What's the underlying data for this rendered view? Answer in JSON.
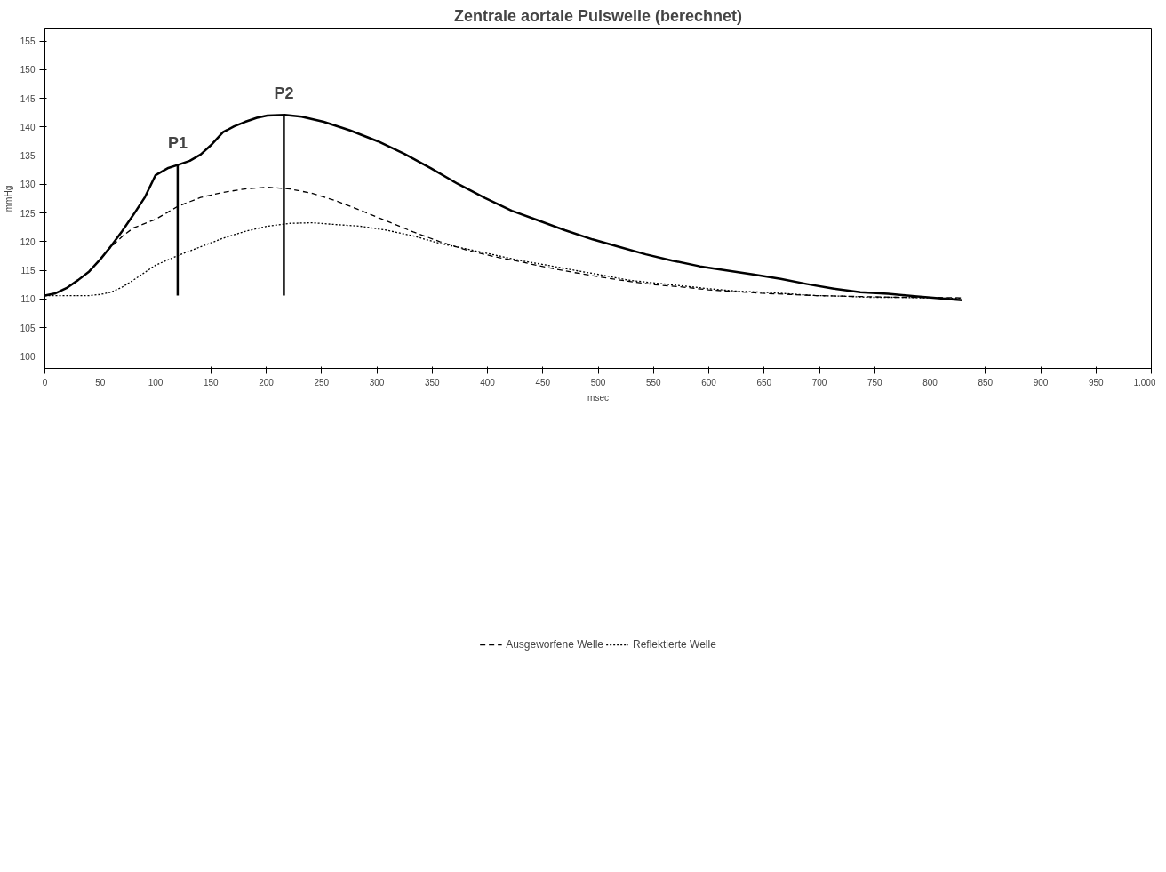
{
  "chart_data": {
    "type": "line",
    "title": "Zentrale aortale Pulswelle (berechnet)",
    "xlabel": "msec",
    "ylabel": "mmHg",
    "xlim": [
      0,
      1000
    ],
    "ylim": [
      97.9,
      157.1
    ],
    "xticks": [
      0,
      50,
      100,
      150,
      200,
      250,
      300,
      350,
      400,
      450,
      500,
      550,
      600,
      650,
      700,
      750,
      800,
      850,
      900,
      950,
      {
        "value": 1000,
        "label": "1.000"
      }
    ],
    "yticks": [
      100,
      105,
      110,
      115,
      120,
      125,
      130,
      135,
      140,
      145,
      150,
      155
    ],
    "grid": false,
    "legend": "bottom",
    "marker": "none",
    "annotations": [
      {
        "text": "P1",
        "x": 120,
        "y": 133.4
      },
      {
        "text": "P2",
        "x": 216,
        "y": 142.1
      }
    ],
    "series": [
      {
        "color": "#000000",
        "line_style": "solid",
        "x": [
          0,
          9.7,
          19.4,
          30,
          40,
          50,
          60,
          70,
          80,
          90.5,
          100,
          110.8,
          120.5,
          131,
          140.7,
          151,
          161,
          171,
          181,
          191.6,
          201,
          216.7,
          232,
          252,
          276,
          301,
          325,
          349,
          373,
          398,
          422,
          446,
          470,
          495,
          519,
          543,
          567,
          592,
          616,
          640,
          665,
          689,
          713,
          737,
          762,
          786,
          810,
          829
        ],
        "values": [
          110.6,
          111.0,
          111.9,
          113.3,
          114.8,
          116.9,
          119.3,
          121.9,
          124.7,
          127.8,
          131.6,
          132.8,
          133.4,
          134.1,
          135.2,
          137.0,
          139.1,
          140.1,
          140.9,
          141.6,
          142.0,
          142.1,
          141.8,
          140.9,
          139.4,
          137.5,
          135.3,
          132.8,
          130.1,
          127.6,
          125.4,
          123.7,
          122.0,
          120.4,
          119.1,
          117.8,
          116.7,
          115.7,
          115.0,
          114.3,
          113.5,
          112.6,
          111.8,
          111.2,
          110.9,
          110.5,
          110.1,
          109.8
        ]
      },
      {
        "name": "Ausgeworfene Welle",
        "color": "#000000",
        "line_style": "dashed",
        "x": [
          40,
          60,
          70.3,
          80,
          100,
          120.5,
          140.7,
          161,
          181,
          201,
          221.5,
          242,
          262,
          285,
          309,
          333,
          357,
          382,
          406,
          430,
          454,
          479,
          503,
          527,
          551,
          576,
          600,
          624,
          648,
          673,
          697,
          721,
          745,
          770,
          794,
          829
        ],
        "values": [
          114.8,
          119.1,
          121.0,
          122.4,
          123.9,
          126.2,
          127.7,
          128.6,
          129.2,
          129.5,
          129.2,
          128.4,
          127.2,
          125.5,
          123.6,
          121.7,
          120.0,
          118.5,
          117.4,
          116.5,
          115.5,
          114.6,
          113.8,
          113.1,
          112.5,
          112.1,
          111.6,
          111.3,
          111.0,
          110.8,
          110.6,
          110.5,
          110.4,
          110.3,
          110.3,
          110.2
        ]
      },
      {
        "name": "Reflektierte Welle",
        "color": "#000000",
        "line_style": "dotted",
        "x": [
          0,
          40,
          50,
          60,
          70,
          80,
          100,
          120.5,
          140.7,
          161,
          181,
          201,
          221.5,
          242,
          262,
          285,
          309,
          333,
          357,
          382,
          406,
          430,
          454,
          479,
          503,
          527,
          551,
          576,
          600,
          624,
          648,
          673,
          697,
          721,
          745,
          770,
          794,
          829
        ],
        "values": [
          110.6,
          110.6,
          110.8,
          111.2,
          112.1,
          113.3,
          115.9,
          117.6,
          119.1,
          120.6,
          121.8,
          122.7,
          123.2,
          123.3,
          123.0,
          122.7,
          122.0,
          121.0,
          119.7,
          118.7,
          117.7,
          116.7,
          115.9,
          115.0,
          114.2,
          113.3,
          112.8,
          112.3,
          111.8,
          111.4,
          111.2,
          110.9,
          110.6,
          110.5,
          110.3,
          110.3,
          110.2,
          110.1
        ]
      },
      {
        "color": "#000000",
        "line_style": "solid",
        "x": [
          120,
          120
        ],
        "values": [
          110.6,
          133.4
        ]
      },
      {
        "color": "#000000",
        "line_style": "solid",
        "x": [
          216,
          216
        ],
        "values": [
          110.6,
          142.1
        ]
      }
    ]
  }
}
